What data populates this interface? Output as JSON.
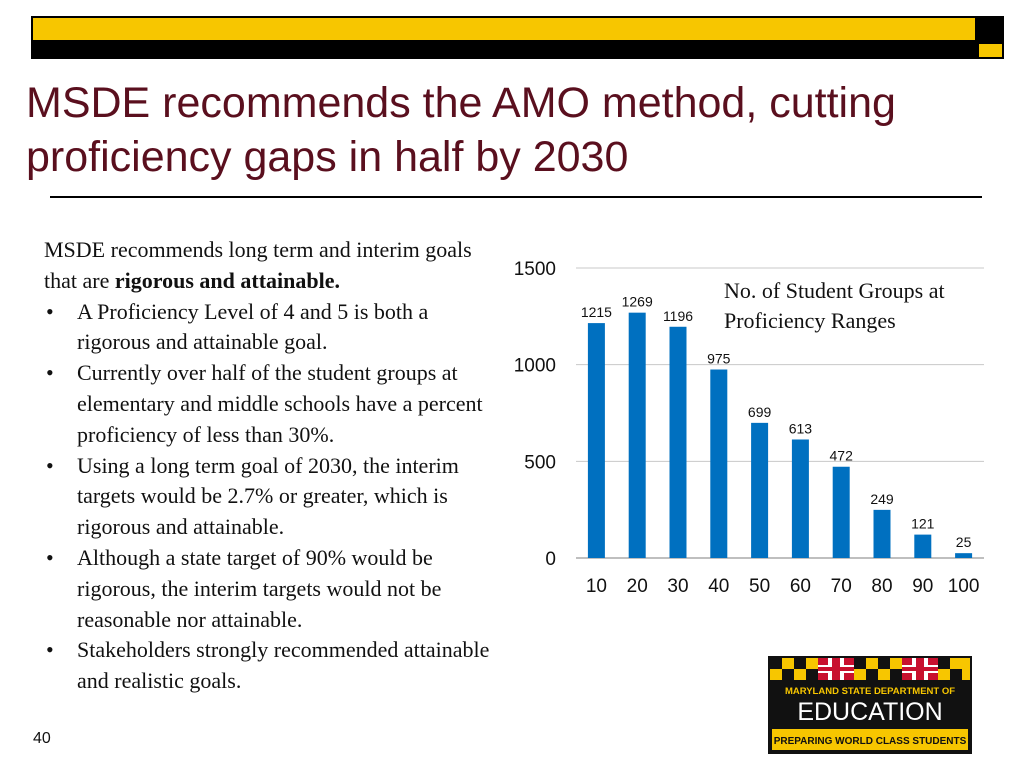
{
  "slide": {
    "title": "MSDE recommends the AMO method, cutting proficiency gaps in half by 2030",
    "number": "40"
  },
  "body": {
    "intro_before": "MSDE recommends long term and interim goals that are ",
    "intro_bold": "rigorous and attainable.",
    "bullets": [
      "A Proficiency Level of 4 and 5 is both a rigorous and attainable goal.",
      "Currently over half of the student groups at elementary and middle schools have a percent proficiency of less than 30%.",
      "Using a long term goal of 2030, the interim targets would be 2.7% or greater, which is rigorous and attainable.",
      "Although a state target of 90% would be rigorous, the interim targets would not be reasonable nor attainable.",
      "Stakeholders strongly recommended attainable and realistic goals."
    ]
  },
  "chart_note": "No. of Student Groups at  Proficiency Ranges",
  "colors": {
    "bar": "#0070c0",
    "title": "#5a0f1e",
    "band_yellow": "#f7c600"
  },
  "chart_data": {
    "type": "bar",
    "categories": [
      "10",
      "20",
      "30",
      "40",
      "50",
      "60",
      "70",
      "80",
      "90",
      "100"
    ],
    "values": [
      1215,
      1269,
      1196,
      975,
      699,
      613,
      472,
      249,
      121,
      25
    ],
    "yticks": [
      "0",
      "500",
      "1000",
      "1500"
    ],
    "ylim": [
      0,
      1500
    ],
    "grid": true,
    "legend": "none",
    "title": "",
    "xlabel": "",
    "ylabel": ""
  },
  "logo": {
    "line1": "MARYLAND STATE DEPARTMENT OF",
    "line2": "EDUCATION",
    "line3": "PREPARING WORLD CLASS STUDENTS"
  }
}
